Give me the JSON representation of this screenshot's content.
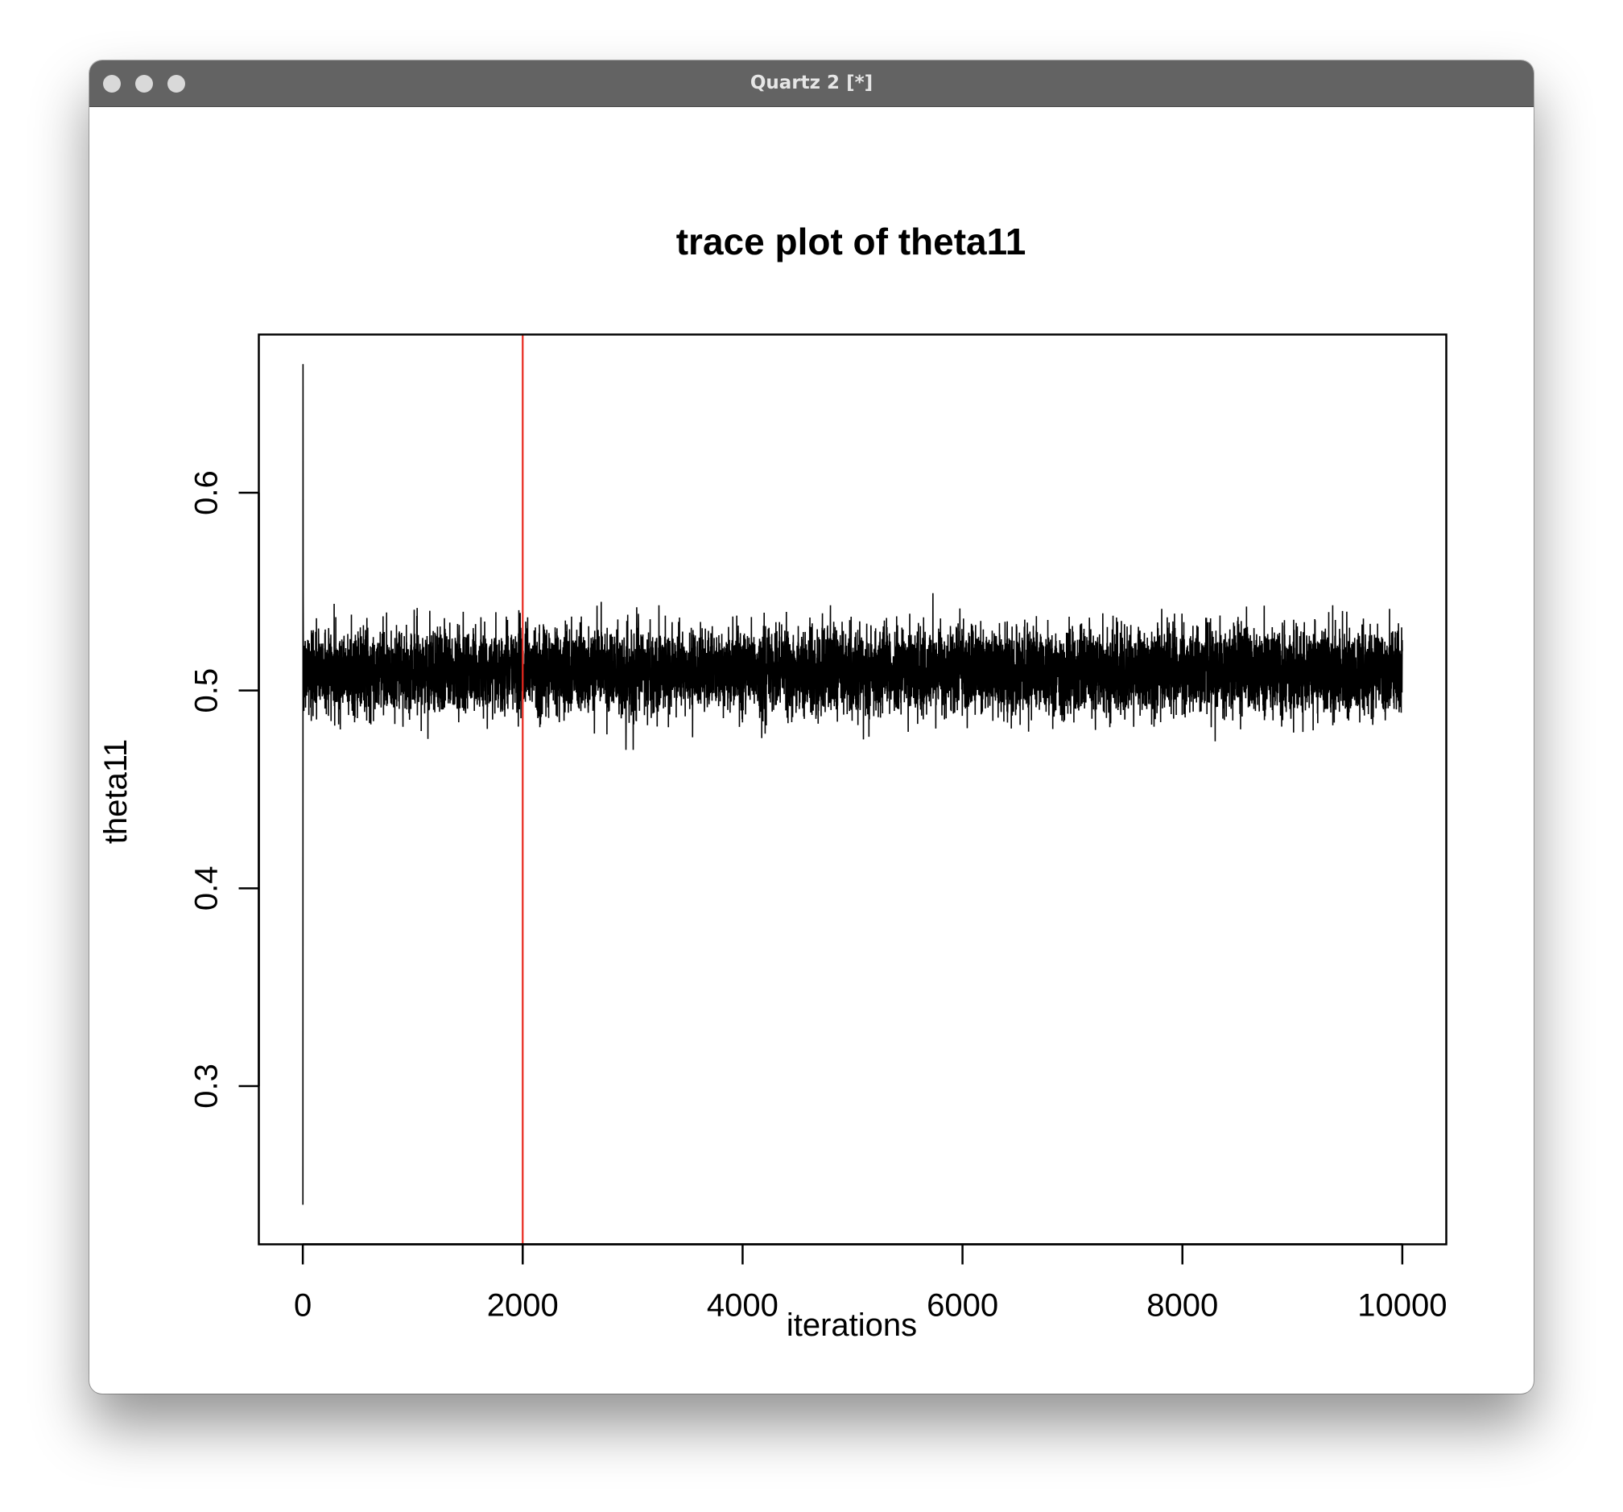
{
  "window": {
    "title": "Quartz 2 [*]"
  },
  "chart_data": {
    "type": "line",
    "title": "trace plot of theta11",
    "xlabel": "iterations",
    "ylabel": "theta11",
    "xlim": [
      -400,
      10400
    ],
    "ylim": [
      0.22,
      0.68
    ],
    "xticks": [
      0,
      2000,
      4000,
      6000,
      8000,
      10000
    ],
    "xtick_labels": [
      "0",
      "2000",
      "4000",
      "6000",
      "8000",
      "10000"
    ],
    "yticks": [
      0.3,
      0.4,
      0.5,
      0.6
    ],
    "ytick_labels": [
      "0.3",
      "0.4",
      "0.5",
      "0.6"
    ],
    "grid": false,
    "series": [
      {
        "color": "#000000",
        "n_iterations": 10000,
        "initial_values": [
          0.24,
          0.665,
          0.55,
          0.53
        ],
        "stationary_mean": 0.51,
        "stationary_sd": 0.0105,
        "observed_min": 0.47,
        "observed_max": 0.55
      }
    ],
    "reference_lines": [
      {
        "orientation": "vertical",
        "x": 2000,
        "color": "#e8281e"
      }
    ]
  }
}
